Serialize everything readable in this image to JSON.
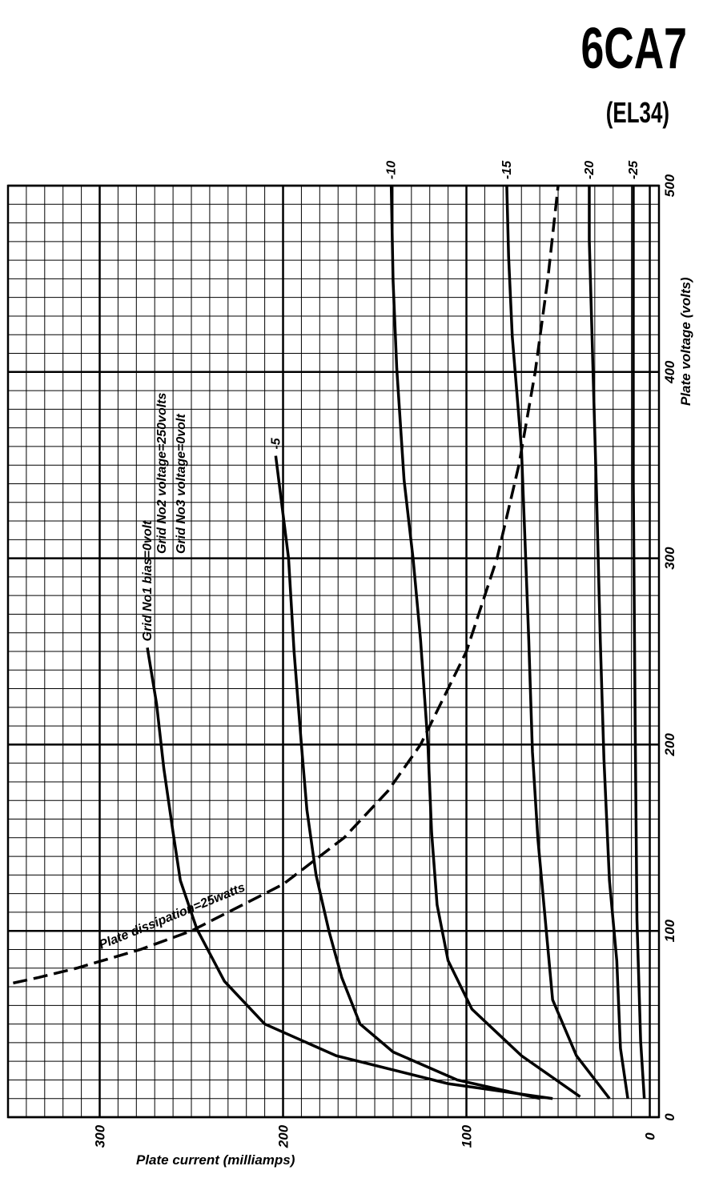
{
  "chart_data": {
    "type": "line",
    "title": "6CA7",
    "subtitle": "(EL34)",
    "x_label": "Plate voltage (volts)",
    "y_label": "Plate current (milliamps)",
    "annotations": [
      "Grid No2 voltage=250volts",
      "Grid No3 voltage=0volt"
    ],
    "orientation": "rotated",
    "xlim": [
      0,
      500
    ],
    "xticks": [
      0,
      100,
      200,
      300,
      400,
      500
    ],
    "ylim": [
      -5,
      350
    ],
    "yticks": [
      0,
      100,
      200,
      300
    ],
    "grid": true,
    "minor_grid_step": 10,
    "series": [
      {
        "name": "Grid No1 bias=0volt",
        "color": "#000000",
        "dashed": false,
        "x": [
          10,
          18,
          33,
          50,
          73,
          101,
          127,
          153,
          187,
          222,
          252
        ],
        "values": [
          53,
          110,
          171,
          210,
          232,
          247,
          256,
          260,
          265,
          269,
          274
        ]
      },
      {
        "name": "-5",
        "color": "#000000",
        "dashed": false,
        "x": [
          10,
          20,
          35,
          50,
          75,
          100,
          130,
          165,
          200,
          250,
          300,
          355
        ],
        "values": [
          60,
          105,
          140,
          158,
          168,
          175,
          182,
          187,
          190,
          194,
          197,
          204
        ]
      },
      {
        "name": "-10",
        "color": "#000000",
        "dashed": false,
        "x": [
          11,
          33,
          58,
          84,
          114,
          153,
          200,
          256,
          299,
          342,
          402,
          449,
          500
        ],
        "values": [
          38,
          70,
          97,
          110,
          116,
          119,
          121,
          125,
          129,
          134,
          138,
          140,
          141
        ]
      },
      {
        "name": "-15",
        "color": "#000000",
        "dashed": false,
        "x": [
          10,
          33,
          63,
          106,
          149,
          196,
          256,
          308,
          359,
          419,
          462,
          500
        ],
        "values": [
          22,
          40,
          53,
          57,
          61,
          64,
          66,
          68,
          70,
          75,
          77,
          78
        ]
      },
      {
        "name": "-20",
        "color": "#000000",
        "dashed": false,
        "x": [
          10,
          37,
          84,
          127,
          192,
          256,
          333,
          402,
          471,
          500
        ],
        "values": [
          12,
          16,
          18,
          22,
          25,
          27,
          29,
          31,
          33,
          33
        ]
      },
      {
        "name": "-25",
        "color": "#000000",
        "dashed": false,
        "x": [
          10,
          41,
          106,
          213,
          342,
          500
        ],
        "values": [
          3,
          5,
          7,
          8,
          9,
          9
        ]
      },
      {
        "name": "Plate dissipation=25watts",
        "color": "#000000",
        "dashed": true,
        "x": [
          72,
          75,
          80,
          90,
          100,
          125,
          150,
          175,
          200,
          250,
          300,
          350,
          400,
          450,
          500
        ],
        "values": [
          347.2,
          333.3,
          312.5,
          277.8,
          250,
          200,
          166.7,
          142.9,
          125,
          100,
          83.3,
          71.4,
          62.5,
          55.6,
          50
        ]
      }
    ]
  }
}
